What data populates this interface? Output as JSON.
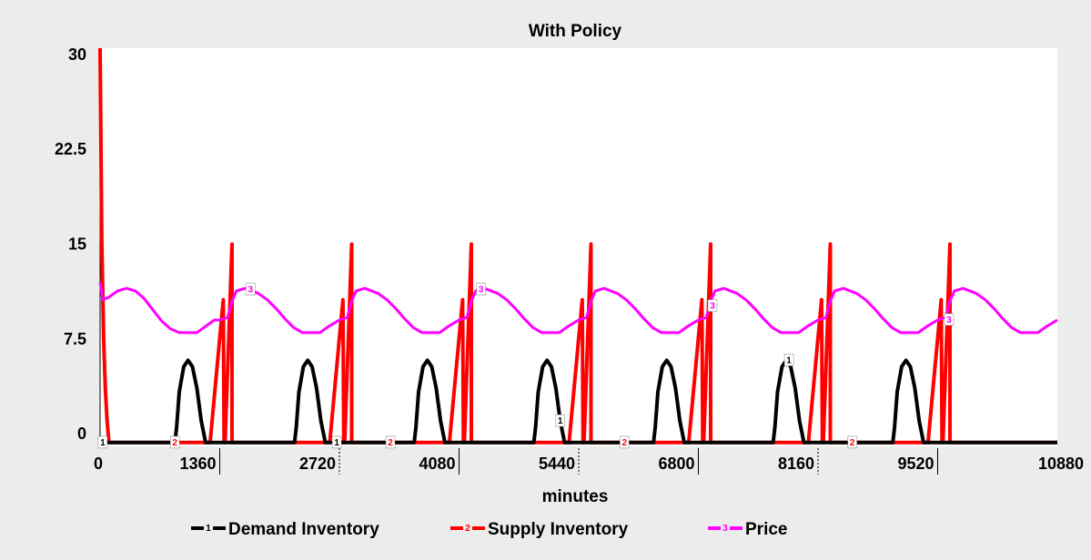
{
  "chart_data": {
    "type": "line",
    "title": "With Policy",
    "xlabel": "minutes",
    "ylabel": "",
    "xlim": [
      0,
      10880
    ],
    "ylim": [
      -1,
      30.5
    ],
    "x_ticks": [
      0,
      1360,
      2720,
      4080,
      5440,
      6800,
      8160,
      9520,
      10880
    ],
    "x_tick_labels": [
      "0",
      "1360",
      "2720",
      "4080",
      "5440",
      "6800",
      "8160",
      "9520",
      "10880"
    ],
    "y_ticks": [
      0,
      7.5,
      15,
      22.5,
      30
    ],
    "y_tick_labels": [
      "0",
      "7.5",
      "15",
      "22.5",
      "30"
    ],
    "grid": false,
    "legend": "bottom",
    "series": [
      {
        "name": "Demand Inventory",
        "marker": "1",
        "color": "#000000",
        "x": [
          0,
          850,
          870,
          900,
          950,
          1000,
          1050,
          1100,
          1150,
          1200,
          1230,
          1250,
          2210,
          2230,
          2260,
          2310,
          2360,
          2410,
          2460,
          2510,
          2560,
          2590,
          2610,
          3570,
          3590,
          3620,
          3670,
          3720,
          3770,
          3820,
          3870,
          3920,
          3950,
          3970,
          4930,
          4950,
          4980,
          5030,
          5080,
          5130,
          5180,
          5230,
          5280,
          5310,
          5330,
          6290,
          6310,
          6340,
          6390,
          6440,
          6490,
          6540,
          6590,
          6640,
          6670,
          6690,
          7650,
          7670,
          7700,
          7750,
          7800,
          7850,
          7900,
          7950,
          8000,
          8030,
          8050,
          9010,
          9030,
          9060,
          9110,
          9160,
          9210,
          9260,
          9310,
          9360,
          9390,
          9410,
          10880
        ],
        "y": [
          -0.7,
          -0.7,
          0.5,
          3.3,
          5.3,
          5.8,
          5.3,
          3.6,
          1.0,
          -0.7,
          -0.7,
          -0.7,
          -0.7,
          0.5,
          3.3,
          5.3,
          5.8,
          5.3,
          3.6,
          1.0,
          -0.7,
          -0.7,
          -0.7,
          -0.7,
          0.5,
          3.3,
          5.3,
          5.8,
          5.3,
          3.6,
          1.0,
          -0.7,
          -0.7,
          -0.7,
          -0.7,
          0.5,
          3.3,
          5.3,
          5.8,
          5.3,
          3.6,
          1.0,
          -0.7,
          -0.7,
          -0.7,
          -0.7,
          0.5,
          3.3,
          5.3,
          5.8,
          5.3,
          3.6,
          1.0,
          -0.7,
          -0.7,
          -0.7,
          -0.7,
          0.5,
          3.3,
          5.3,
          5.8,
          5.3,
          3.6,
          1.0,
          -0.7,
          -0.7,
          -0.7,
          -0.7,
          0.5,
          3.3,
          5.3,
          5.8,
          5.3,
          3.6,
          1.0,
          -0.7,
          -0.7,
          -0.7,
          -0.7
        ],
        "marker_positions": [
          [
            30,
            -0.7
          ],
          [
            2690,
            -0.7
          ],
          [
            5230,
            1.0
          ],
          [
            7830,
            5.8
          ]
        ]
      },
      {
        "name": "Supply Inventory",
        "marker": "2",
        "color": "#ff0000",
        "x": [
          0,
          0.1,
          20,
          40,
          60,
          80,
          100,
          140,
          180,
          1250,
          1400,
          1410,
          1420,
          1500,
          1500.1,
          2610,
          2760,
          2770,
          2780,
          2860,
          2860.1,
          3970,
          4120,
          4130,
          4140,
          4220,
          4220.1,
          5330,
          5480,
          5490,
          5500,
          5580,
          5580.1,
          6690,
          6840,
          6850,
          6860,
          6940,
          6940.1,
          8050,
          8200,
          8210,
          8220,
          8300,
          8300.1,
          9410,
          9560,
          9570,
          9580,
          9660,
          9660.1,
          10880
        ],
        "y": [
          30.5,
          30.5,
          15,
          7.5,
          3.5,
          1.0,
          -0.7,
          -0.7,
          -0.7,
          -0.7,
          10.6,
          -0.7,
          -0.7,
          15,
          -0.7,
          -0.7,
          10.6,
          -0.7,
          -0.7,
          15,
          -0.7,
          -0.7,
          10.6,
          -0.7,
          -0.7,
          15,
          -0.7,
          -0.7,
          10.6,
          -0.7,
          -0.7,
          15,
          -0.7,
          -0.7,
          10.6,
          -0.7,
          -0.7,
          15,
          -0.7,
          -0.7,
          10.6,
          -0.7,
          -0.7,
          15,
          -0.7,
          -0.7,
          10.6,
          -0.7,
          -0.7,
          15,
          -0.7,
          -0.7
        ],
        "marker_positions": [
          [
            850,
            -0.7
          ],
          [
            3300,
            -0.7
          ],
          [
            5960,
            -0.7
          ],
          [
            8550,
            -0.7
          ]
        ]
      },
      {
        "name": "Price",
        "marker": "3",
        "color": "#ff00ff",
        "x": [
          0,
          30,
          100,
          200,
          300,
          400,
          500,
          600,
          700,
          800,
          900,
          1000,
          1100,
          1200,
          1300,
          1360,
          1450,
          1500,
          1550,
          1650,
          1800,
          1900,
          2000,
          2100,
          2200,
          2300,
          2400,
          2500,
          2600,
          2720,
          2810,
          2860,
          2910,
          3010,
          3160,
          3260,
          3360,
          3460,
          3560,
          3660,
          3760,
          3860,
          3960,
          4080,
          4170,
          4220,
          4270,
          4370,
          4520,
          4620,
          4720,
          4820,
          4920,
          5020,
          5120,
          5220,
          5320,
          5440,
          5530,
          5580,
          5630,
          5730,
          5880,
          5980,
          6080,
          6180,
          6280,
          6380,
          6480,
          6580,
          6680,
          6800,
          6890,
          6940,
          6990,
          7090,
          7240,
          7340,
          7440,
          7540,
          7640,
          7740,
          7840,
          7940,
          8040,
          8160,
          8250,
          8300,
          8350,
          8450,
          8600,
          8700,
          8800,
          8900,
          9000,
          9100,
          9200,
          9300,
          9400,
          9520,
          9610,
          9660,
          9710,
          9810,
          9960,
          10060,
          10160,
          10260,
          10360,
          10460,
          10560,
          10660,
          10760,
          10880
        ],
        "y": [
          12.0,
          10.6,
          10.8,
          11.3,
          11.5,
          11.3,
          10.7,
          9.8,
          8.9,
          8.3,
          8.0,
          8.0,
          8.0,
          8.5,
          9.0,
          9.0,
          9.2,
          10.5,
          11.3,
          11.5,
          11.1,
          10.6,
          9.9,
          9.1,
          8.4,
          8.0,
          8.0,
          8.0,
          8.5,
          9.0,
          9.2,
          10.5,
          11.3,
          11.5,
          11.1,
          10.6,
          9.9,
          9.1,
          8.4,
          8.0,
          8.0,
          8.0,
          8.5,
          9.0,
          9.2,
          10.5,
          11.3,
          11.5,
          11.1,
          10.6,
          9.9,
          9.1,
          8.4,
          8.0,
          8.0,
          8.0,
          8.5,
          9.0,
          9.2,
          10.5,
          11.3,
          11.5,
          11.1,
          10.6,
          9.9,
          9.1,
          8.4,
          8.0,
          8.0,
          8.0,
          8.5,
          9.0,
          9.2,
          10.5,
          11.3,
          11.5,
          11.1,
          10.6,
          9.9,
          9.1,
          8.4,
          8.0,
          8.0,
          8.0,
          8.5,
          9.0,
          9.2,
          10.5,
          11.3,
          11.5,
          11.1,
          10.6,
          9.9,
          9.1,
          8.4,
          8.0,
          8.0,
          8.0,
          8.5,
          9.0,
          9.2,
          10.5,
          11.3,
          11.5,
          11.1,
          10.6,
          9.9,
          9.1,
          8.4,
          8.0,
          8.0,
          8.0,
          8.5,
          9.0
        ],
        "marker_positions": [
          [
            1710,
            11.4
          ],
          [
            4330,
            11.4
          ],
          [
            6960,
            10.1
          ],
          [
            9650,
            9.0
          ]
        ]
      }
    ]
  }
}
